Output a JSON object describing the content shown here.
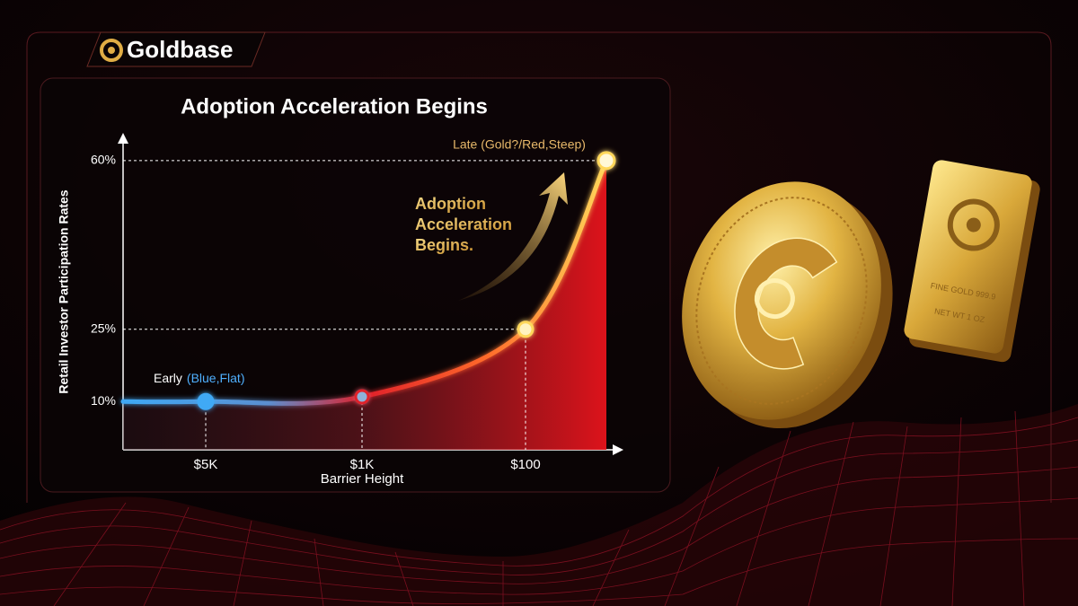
{
  "brand": "Goldbase",
  "chart_data": {
    "type": "line",
    "title": "Adoption Acceleration Begins",
    "x_label": "Barrier Height",
    "y_label": "Retail Investor Participation Rates",
    "categories": [
      null,
      "$5K",
      "$1K",
      "$100",
      null
    ],
    "values": [
      10,
      10,
      11,
      25,
      60
    ],
    "ylim": [
      0,
      65
    ],
    "yticks": [
      {
        "value": 10,
        "label": "10%"
      },
      {
        "value": 25,
        "label": "25%"
      },
      {
        "value": 60,
        "label": "60%"
      }
    ],
    "colors": [
      "#3fa9f5",
      "#e0202a",
      "#ffd75a"
    ],
    "annotations": {
      "early": "Early",
      "early_note": "(Blue,Flat)",
      "late": "Late (Gold?/Red,Steep)",
      "arrow_text": [
        "Adoption",
        "Acceleration",
        "Begins."
      ]
    }
  },
  "bar_text": [
    "FINE GOLD 999.9",
    "NET WT 1 OZ"
  ]
}
